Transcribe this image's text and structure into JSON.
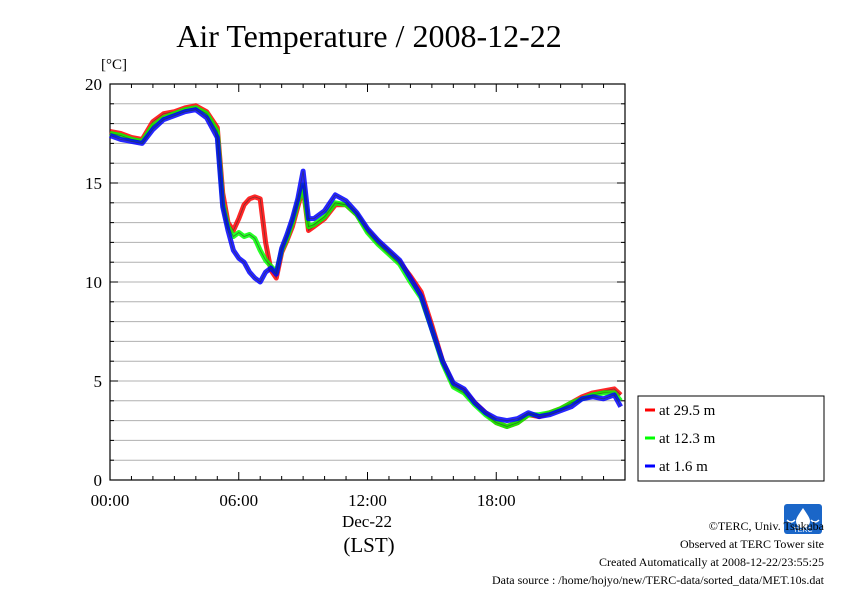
{
  "chart_data": {
    "type": "line",
    "title": "Air Temperature / 2008-12-22",
    "ylabel": "[°C]",
    "xlabel_date": "Dec-22",
    "xlabel_tz": "(LST)",
    "ylim": [
      0,
      20
    ],
    "xlim_hours": [
      0,
      24
    ],
    "yticks": [
      "0",
      "5",
      "10",
      "15",
      "20"
    ],
    "xticks": [
      {
        "hour": 0,
        "label": "00:00"
      },
      {
        "hour": 6,
        "label": "06:00"
      },
      {
        "hour": 12,
        "label": "12:00"
      },
      {
        "hour": 18,
        "label": "18:00"
      }
    ],
    "grid": true,
    "legend_position": "bottom-right, outside plot",
    "series": [
      {
        "name": "at 29.5 m",
        "color": "#ff0000",
        "points": [
          [
            0,
            17.6
          ],
          [
            0.5,
            17.5
          ],
          [
            1,
            17.3
          ],
          [
            1.5,
            17.2
          ],
          [
            2,
            18.1
          ],
          [
            2.5,
            18.5
          ],
          [
            3,
            18.6
          ],
          [
            3.5,
            18.8
          ],
          [
            4,
            18.9
          ],
          [
            4.5,
            18.6
          ],
          [
            5,
            17.8
          ],
          [
            5.25,
            14.5
          ],
          [
            5.5,
            13.0
          ],
          [
            5.75,
            12.6
          ],
          [
            6,
            13.2
          ],
          [
            6.25,
            13.9
          ],
          [
            6.5,
            14.2
          ],
          [
            6.75,
            14.3
          ],
          [
            7,
            14.2
          ],
          [
            7.25,
            12.0
          ],
          [
            7.5,
            10.6
          ],
          [
            7.75,
            10.2
          ],
          [
            8,
            11.5
          ],
          [
            8.25,
            12.1
          ],
          [
            8.5,
            12.8
          ],
          [
            8.75,
            13.8
          ],
          [
            9,
            14.8
          ],
          [
            9.25,
            12.6
          ],
          [
            9.5,
            12.8
          ],
          [
            10,
            13.2
          ],
          [
            10.5,
            13.9
          ],
          [
            11,
            13.9
          ],
          [
            11.5,
            13.4
          ],
          [
            12,
            12.6
          ],
          [
            12.5,
            12.0
          ],
          [
            13,
            11.5
          ],
          [
            13.5,
            11.0
          ],
          [
            14,
            10.3
          ],
          [
            14.5,
            9.5
          ],
          [
            15,
            7.8
          ],
          [
            15.5,
            6.0
          ],
          [
            16,
            4.8
          ],
          [
            16.5,
            4.5
          ],
          [
            17,
            3.9
          ],
          [
            17.5,
            3.4
          ],
          [
            18,
            2.9
          ],
          [
            18.5,
            2.7
          ],
          [
            19,
            2.9
          ],
          [
            19.5,
            3.3
          ],
          [
            20,
            3.2
          ],
          [
            20.5,
            3.4
          ],
          [
            21,
            3.6
          ],
          [
            21.5,
            3.9
          ],
          [
            22,
            4.2
          ],
          [
            22.5,
            4.4
          ],
          [
            23,
            4.5
          ],
          [
            23.5,
            4.6
          ],
          [
            23.8,
            4.3
          ]
        ]
      },
      {
        "name": "at 12.3 m",
        "color": "#00ff00",
        "points": [
          [
            0,
            17.5
          ],
          [
            0.5,
            17.4
          ],
          [
            1,
            17.2
          ],
          [
            1.5,
            17.1
          ],
          [
            2,
            17.9
          ],
          [
            2.5,
            18.3
          ],
          [
            3,
            18.5
          ],
          [
            3.5,
            18.7
          ],
          [
            4,
            18.8
          ],
          [
            4.5,
            18.5
          ],
          [
            5,
            17.6
          ],
          [
            5.25,
            14.0
          ],
          [
            5.5,
            12.8
          ],
          [
            5.75,
            12.3
          ],
          [
            6,
            12.5
          ],
          [
            6.25,
            12.3
          ],
          [
            6.5,
            12.4
          ],
          [
            6.75,
            12.2
          ],
          [
            7,
            11.6
          ],
          [
            7.25,
            11.1
          ],
          [
            7.5,
            10.8
          ],
          [
            7.75,
            10.5
          ],
          [
            8,
            11.6
          ],
          [
            8.25,
            12.2
          ],
          [
            8.5,
            13.0
          ],
          [
            8.75,
            14.0
          ],
          [
            9,
            14.9
          ],
          [
            9.25,
            12.8
          ],
          [
            9.5,
            12.9
          ],
          [
            10,
            13.3
          ],
          [
            10.5,
            14.0
          ],
          [
            11,
            13.9
          ],
          [
            11.5,
            13.4
          ],
          [
            12,
            12.5
          ],
          [
            12.5,
            11.9
          ],
          [
            13,
            11.4
          ],
          [
            13.5,
            10.9
          ],
          [
            14,
            10.0
          ],
          [
            14.5,
            9.2
          ],
          [
            15,
            7.6
          ],
          [
            15.5,
            5.9
          ],
          [
            16,
            4.7
          ],
          [
            16.5,
            4.4
          ],
          [
            17,
            3.8
          ],
          [
            17.5,
            3.3
          ],
          [
            18,
            2.9
          ],
          [
            18.5,
            2.7
          ],
          [
            19,
            2.9
          ],
          [
            19.5,
            3.3
          ],
          [
            20,
            3.3
          ],
          [
            20.5,
            3.4
          ],
          [
            21,
            3.6
          ],
          [
            21.5,
            3.9
          ],
          [
            22,
            4.1
          ],
          [
            22.5,
            4.3
          ],
          [
            23,
            4.4
          ],
          [
            23.5,
            4.4
          ],
          [
            23.8,
            4.0
          ]
        ]
      },
      {
        "name": "at 1.6 m",
        "color": "#0000ff",
        "points": [
          [
            0,
            17.4
          ],
          [
            0.5,
            17.2
          ],
          [
            1,
            17.1
          ],
          [
            1.5,
            17.0
          ],
          [
            2,
            17.7
          ],
          [
            2.5,
            18.2
          ],
          [
            3,
            18.4
          ],
          [
            3.5,
            18.6
          ],
          [
            4,
            18.7
          ],
          [
            4.5,
            18.3
          ],
          [
            5,
            17.3
          ],
          [
            5.25,
            13.8
          ],
          [
            5.5,
            12.6
          ],
          [
            5.75,
            11.6
          ],
          [
            6,
            11.2
          ],
          [
            6.25,
            11.0
          ],
          [
            6.5,
            10.5
          ],
          [
            6.75,
            10.2
          ],
          [
            7,
            10.0
          ],
          [
            7.25,
            10.5
          ],
          [
            7.5,
            10.7
          ],
          [
            7.75,
            10.4
          ],
          [
            8,
            11.7
          ],
          [
            8.25,
            12.4
          ],
          [
            8.5,
            13.2
          ],
          [
            8.75,
            14.2
          ],
          [
            9,
            15.6
          ],
          [
            9.25,
            13.2
          ],
          [
            9.5,
            13.2
          ],
          [
            10,
            13.6
          ],
          [
            10.5,
            14.4
          ],
          [
            11,
            14.1
          ],
          [
            11.5,
            13.5
          ],
          [
            12,
            12.7
          ],
          [
            12.5,
            12.1
          ],
          [
            13,
            11.6
          ],
          [
            13.5,
            11.1
          ],
          [
            14,
            10.2
          ],
          [
            14.5,
            9.3
          ],
          [
            15,
            7.6
          ],
          [
            15.5,
            6.0
          ],
          [
            16,
            4.9
          ],
          [
            16.5,
            4.6
          ],
          [
            17,
            3.9
          ],
          [
            17.5,
            3.4
          ],
          [
            18,
            3.1
          ],
          [
            18.5,
            3.0
          ],
          [
            19,
            3.1
          ],
          [
            19.5,
            3.4
          ],
          [
            20,
            3.2
          ],
          [
            20.5,
            3.3
          ],
          [
            21,
            3.5
          ],
          [
            21.5,
            3.7
          ],
          [
            22,
            4.1
          ],
          [
            22.5,
            4.2
          ],
          [
            23,
            4.1
          ],
          [
            23.5,
            4.3
          ],
          [
            23.8,
            3.7
          ]
        ]
      }
    ]
  },
  "footer": {
    "copyright": "©TERC, Univ. Tsukuba",
    "observed": "Observed at TERC Tower site",
    "created": "Created Automatically at 2008-12-22/23:55:25",
    "source": "Data source : /home/hojyo/new/TERC-data/sorted_data/MET.10s.dat"
  },
  "logo": {
    "text": "TERC",
    "color": "#1a66c8"
  }
}
